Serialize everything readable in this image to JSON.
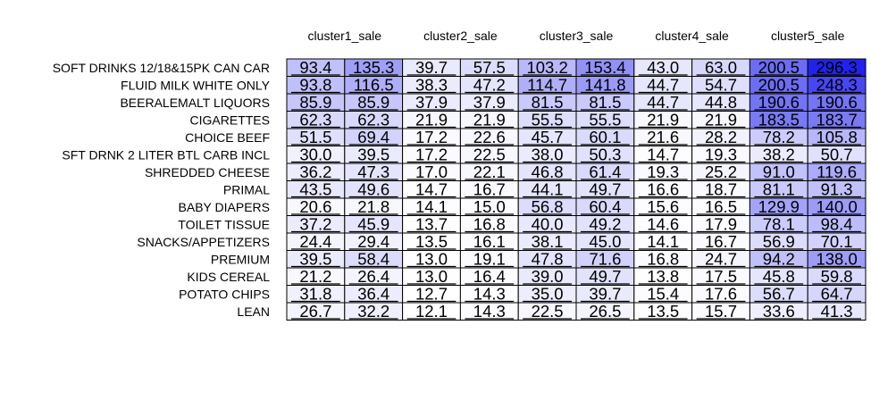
{
  "chart_data": {
    "type": "heatmap",
    "title": "",
    "column_groups": [
      "cluster1_sale",
      "cluster2_sale",
      "cluster3_sale",
      "cluster4_sale",
      "cluster5_sale"
    ],
    "rows": [
      "SOFT DRINKS 12/18&15PK CAN CAR",
      "FLUID MILK WHITE ONLY",
      "BEERALEMALT LIQUORS",
      "CIGARETTES",
      "CHOICE BEEF",
      "SFT DRNK 2 LITER BTL CARB INCL",
      "SHREDDED CHEESE",
      "PRIMAL",
      "BABY DIAPERS",
      "TOILET TISSUE",
      "SNACKS/APPETIZERS",
      "PREMIUM",
      "KIDS CEREAL",
      "POTATO CHIPS",
      "LEAN"
    ],
    "values": [
      [
        93.4,
        135.3,
        39.7,
        57.5,
        103.2,
        153.4,
        43.0,
        63.0,
        200.5,
        296.3
      ],
      [
        93.8,
        116.5,
        38.3,
        47.2,
        114.7,
        141.8,
        44.7,
        54.7,
        200.5,
        248.3
      ],
      [
        85.9,
        85.9,
        37.9,
        37.9,
        81.5,
        81.5,
        44.7,
        44.8,
        190.6,
        190.6
      ],
      [
        62.3,
        62.3,
        21.9,
        21.9,
        55.5,
        55.5,
        21.9,
        21.9,
        183.5,
        183.7
      ],
      [
        51.5,
        69.4,
        17.2,
        22.6,
        45.7,
        60.1,
        21.6,
        28.2,
        78.2,
        105.8
      ],
      [
        30.0,
        39.5,
        17.2,
        22.5,
        38.0,
        50.3,
        14.7,
        19.3,
        38.2,
        50.7
      ],
      [
        36.2,
        47.3,
        17.0,
        22.1,
        46.8,
        61.4,
        19.3,
        25.2,
        91.0,
        119.6
      ],
      [
        43.5,
        49.6,
        14.7,
        16.7,
        44.1,
        49.7,
        16.6,
        18.7,
        81.1,
        91.3
      ],
      [
        20.6,
        21.8,
        14.1,
        15.0,
        56.8,
        60.4,
        15.6,
        16.5,
        129.9,
        140.0
      ],
      [
        37.2,
        45.9,
        13.7,
        16.8,
        40.0,
        49.2,
        14.6,
        17.9,
        78.1,
        98.4
      ],
      [
        24.4,
        29.4,
        13.5,
        16.1,
        38.1,
        45.0,
        14.1,
        16.7,
        56.9,
        70.1
      ],
      [
        39.5,
        58.4,
        13.0,
        19.1,
        47.8,
        71.6,
        16.8,
        24.7,
        94.2,
        138.0
      ],
      [
        21.2,
        26.4,
        13.0,
        16.4,
        39.0,
        49.7,
        13.8,
        17.5,
        45.8,
        59.8
      ],
      [
        31.8,
        36.4,
        12.7,
        14.3,
        35.0,
        39.7,
        15.4,
        17.6,
        56.7,
        64.7
      ],
      [
        26.7,
        32.2,
        12.1,
        14.3,
        22.5,
        26.5,
        13.5,
        15.7,
        33.6,
        41.3
      ]
    ],
    "color_low": "#ffffff",
    "color_high": "#2222ee",
    "grid": true,
    "legend": "none"
  }
}
